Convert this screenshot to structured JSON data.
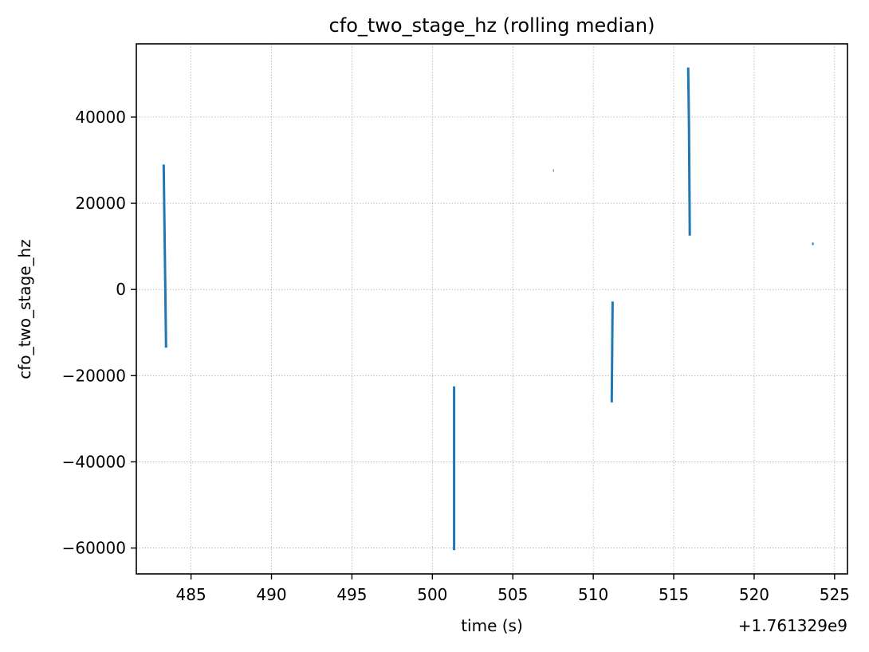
{
  "chart_data": {
    "type": "line",
    "title": "cfo_two_stage_hz (rolling median)",
    "xlabel": "time (s)",
    "ylabel": "cfo_two_stage_hz",
    "x_offset_label": "+1.761329e9",
    "xlim": [
      481.6,
      525.8
    ],
    "ylim": [
      -66000,
      57000
    ],
    "x_ticks": [
      485,
      490,
      495,
      500,
      505,
      510,
      515,
      520,
      525
    ],
    "y_ticks": [
      -60000,
      -40000,
      -20000,
      0,
      20000,
      40000
    ],
    "x_tick_labels": [
      "485",
      "490",
      "495",
      "500",
      "505",
      "510",
      "515",
      "520",
      "525"
    ],
    "y_tick_labels": [
      "−60000",
      "−40000",
      "−20000",
      "0",
      "20000",
      "40000"
    ],
    "grid": true,
    "line_color": "#1f77b4",
    "series": [
      {
        "segments": [
          {
            "x": [
              483.3,
              483.45
            ],
            "y": [
              29000,
              -13500
            ]
          },
          {
            "x": [
              501.35,
              501.35
            ],
            "y": [
              -22500,
              -60500
            ]
          },
          {
            "x": [
              507.5,
              507.55
            ],
            "y": [
              27600,
              27600
            ]
          },
          {
            "x": [
              511.2,
              511.15
            ],
            "y": [
              -2800,
              -26200
            ]
          },
          {
            "x": [
              515.9,
              515.95,
              516.0
            ],
            "y": [
              51500,
              38000,
              12500
            ]
          },
          {
            "x": [
              523.6,
              523.7
            ],
            "y": [
              10600,
              10600
            ]
          }
        ]
      }
    ]
  }
}
